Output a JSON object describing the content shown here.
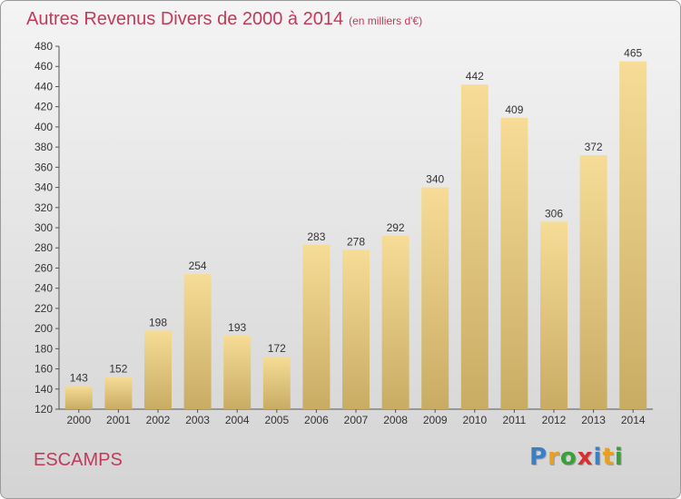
{
  "title": "Autres Revenus Divers de 2000 à 2014",
  "subtitle": "(en milliers d'€)",
  "location": "ESCAMPS",
  "logo": {
    "letters": [
      "P",
      "r",
      "o",
      "x",
      "i",
      "t",
      "i"
    ],
    "colors": [
      "#3b7fc4",
      "#e8a020",
      "#3aa13a",
      "#d83030",
      "#3b7fc4",
      "#e8a020",
      "#3aa13a"
    ]
  },
  "colors": {
    "title": "#c23a5a",
    "bar_light": "#f6dc96",
    "bar_dark": "#c9ac64"
  },
  "chart_data": {
    "type": "bar",
    "categories": [
      "2000",
      "2001",
      "2002",
      "2003",
      "2004",
      "2005",
      "2006",
      "2007",
      "2008",
      "2009",
      "2010",
      "2011",
      "2012",
      "2013",
      "2014"
    ],
    "values": [
      143,
      152,
      198,
      254,
      193,
      172,
      283,
      278,
      292,
      340,
      442,
      409,
      306,
      372,
      465
    ],
    "ylim": [
      120,
      480
    ],
    "yticks": [
      120,
      140,
      160,
      180,
      200,
      220,
      240,
      260,
      280,
      300,
      320,
      340,
      360,
      380,
      400,
      420,
      440,
      460,
      480
    ],
    "grid": false,
    "data_labels": true
  }
}
